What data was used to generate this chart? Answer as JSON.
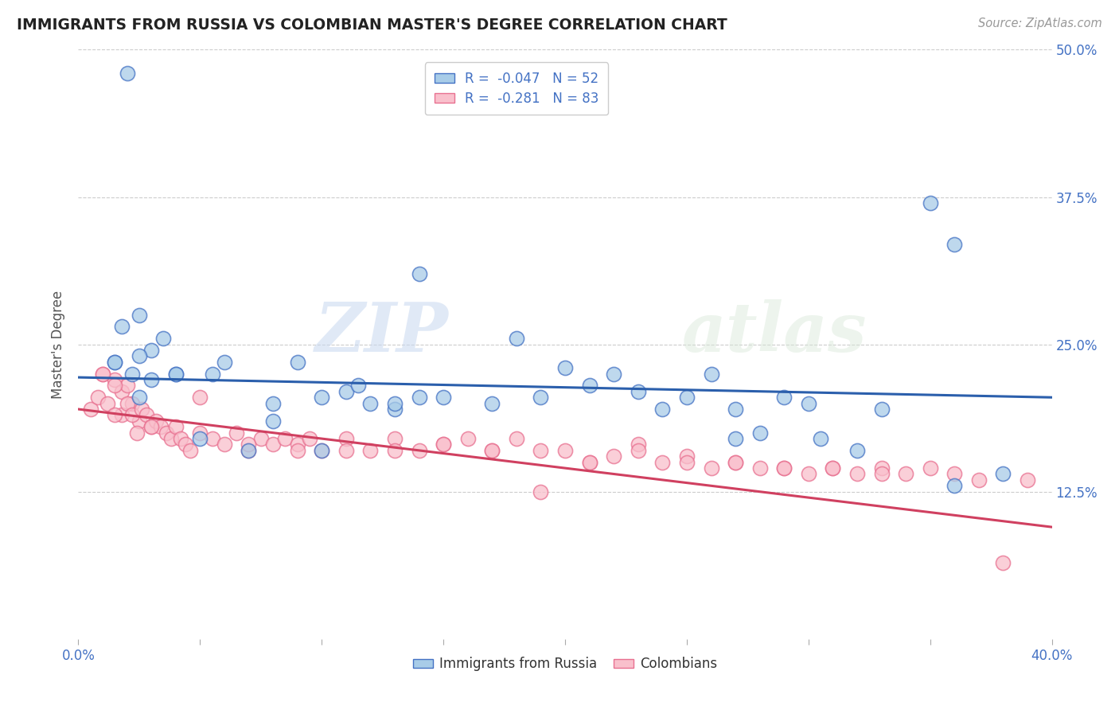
{
  "title": "IMMIGRANTS FROM RUSSIA VS COLOMBIAN MASTER'S DEGREE CORRELATION CHART",
  "source": "Source: ZipAtlas.com",
  "xlabel_bottom": "Immigrants from Russia",
  "xlabel_bottom2": "Colombians",
  "ylabel": "Master's Degree",
  "xlim": [
    0.0,
    0.4
  ],
  "ylim": [
    0.0,
    0.5
  ],
  "xticks": [
    0.0,
    0.05,
    0.1,
    0.15,
    0.2,
    0.25,
    0.3,
    0.35,
    0.4
  ],
  "xtick_labels_shown": [
    "0.0%",
    "",
    "",
    "",
    "",
    "",
    "",
    "",
    "40.0%"
  ],
  "yticks": [
    0.0,
    0.125,
    0.25,
    0.375,
    0.5
  ],
  "ytick_labels_right": [
    "",
    "12.5%",
    "25.0%",
    "37.5%",
    "50.0%"
  ],
  "blue_R": -0.047,
  "blue_N": 52,
  "pink_R": -0.281,
  "pink_N": 83,
  "blue_color": "#a8cce8",
  "pink_color": "#f9c0cc",
  "blue_edge_color": "#4472c4",
  "pink_edge_color": "#e87090",
  "blue_line_color": "#2b5fac",
  "pink_line_color": "#d04060",
  "watermark_zip": "ZIP",
  "watermark_atlas": "atlas",
  "blue_scatter_x": [
    0.02,
    0.035,
    0.025,
    0.03,
    0.04,
    0.018,
    0.015,
    0.025,
    0.03,
    0.022,
    0.015,
    0.025,
    0.04,
    0.055,
    0.06,
    0.08,
    0.09,
    0.1,
    0.11,
    0.115,
    0.12,
    0.13,
    0.14,
    0.15,
    0.17,
    0.18,
    0.19,
    0.2,
    0.21,
    0.22,
    0.23,
    0.24,
    0.13,
    0.14,
    0.25,
    0.26,
    0.27,
    0.05,
    0.07,
    0.08,
    0.1,
    0.29,
    0.3,
    0.305,
    0.33,
    0.35,
    0.36,
    0.28,
    0.27,
    0.32,
    0.38,
    0.36
  ],
  "blue_scatter_y": [
    0.48,
    0.255,
    0.275,
    0.245,
    0.225,
    0.265,
    0.235,
    0.24,
    0.22,
    0.225,
    0.235,
    0.205,
    0.225,
    0.225,
    0.235,
    0.2,
    0.235,
    0.205,
    0.21,
    0.215,
    0.2,
    0.195,
    0.205,
    0.205,
    0.2,
    0.255,
    0.205,
    0.23,
    0.215,
    0.225,
    0.21,
    0.195,
    0.2,
    0.31,
    0.205,
    0.225,
    0.195,
    0.17,
    0.16,
    0.185,
    0.16,
    0.205,
    0.2,
    0.17,
    0.195,
    0.37,
    0.335,
    0.175,
    0.17,
    0.16,
    0.14,
    0.13
  ],
  "pink_scatter_x": [
    0.005,
    0.008,
    0.01,
    0.012,
    0.015,
    0.018,
    0.02,
    0.022,
    0.025,
    0.015,
    0.01,
    0.018,
    0.02,
    0.022,
    0.024,
    0.026,
    0.028,
    0.03,
    0.032,
    0.034,
    0.036,
    0.038,
    0.04,
    0.042,
    0.044,
    0.046,
    0.05,
    0.055,
    0.06,
    0.065,
    0.07,
    0.075,
    0.08,
    0.085,
    0.09,
    0.095,
    0.1,
    0.11,
    0.12,
    0.13,
    0.14,
    0.15,
    0.16,
    0.17,
    0.18,
    0.19,
    0.2,
    0.21,
    0.22,
    0.23,
    0.24,
    0.25,
    0.26,
    0.27,
    0.28,
    0.29,
    0.3,
    0.31,
    0.32,
    0.33,
    0.34,
    0.35,
    0.36,
    0.37,
    0.38,
    0.39,
    0.03,
    0.05,
    0.07,
    0.09,
    0.11,
    0.13,
    0.15,
    0.17,
    0.19,
    0.21,
    0.23,
    0.25,
    0.27,
    0.29,
    0.31,
    0.33,
    0.015
  ],
  "pink_scatter_y": [
    0.195,
    0.205,
    0.225,
    0.2,
    0.22,
    0.21,
    0.215,
    0.2,
    0.185,
    0.215,
    0.225,
    0.19,
    0.2,
    0.19,
    0.175,
    0.195,
    0.19,
    0.18,
    0.185,
    0.18,
    0.175,
    0.17,
    0.18,
    0.17,
    0.165,
    0.16,
    0.175,
    0.17,
    0.165,
    0.175,
    0.16,
    0.17,
    0.165,
    0.17,
    0.165,
    0.17,
    0.16,
    0.17,
    0.16,
    0.17,
    0.16,
    0.165,
    0.17,
    0.16,
    0.17,
    0.125,
    0.16,
    0.15,
    0.155,
    0.165,
    0.15,
    0.155,
    0.145,
    0.15,
    0.145,
    0.145,
    0.14,
    0.145,
    0.14,
    0.145,
    0.14,
    0.145,
    0.14,
    0.135,
    0.065,
    0.135,
    0.18,
    0.205,
    0.165,
    0.16,
    0.16,
    0.16,
    0.165,
    0.16,
    0.16,
    0.15,
    0.16,
    0.15,
    0.15,
    0.145,
    0.145,
    0.14,
    0.19
  ],
  "blue_line_y_start": 0.222,
  "blue_line_y_end": 0.205,
  "pink_line_y_start": 0.195,
  "pink_line_y_end": 0.095,
  "background_color": "#ffffff",
  "grid_color": "#cccccc",
  "title_color": "#222222",
  "tick_color": "#4472c4"
}
